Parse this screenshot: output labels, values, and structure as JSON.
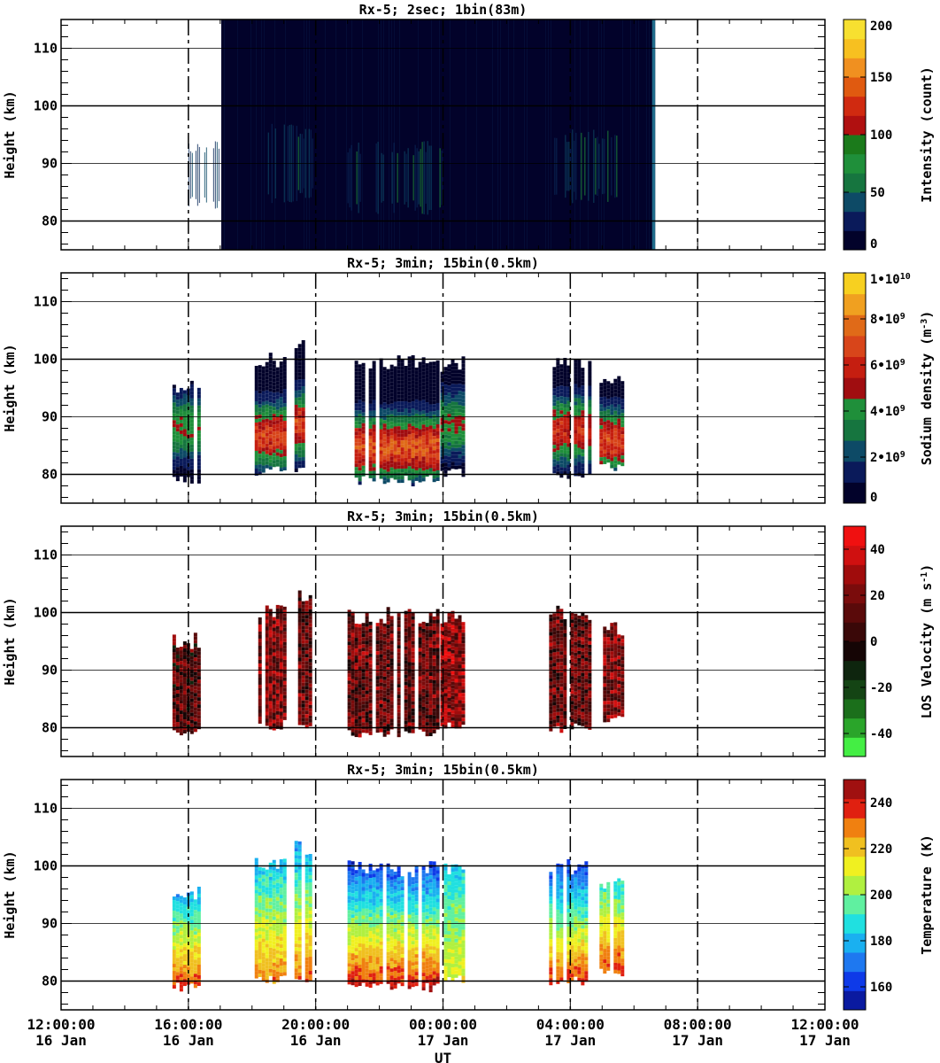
{
  "x_axis": {
    "label": "UT",
    "tick_labels": [
      {
        "time": "12:00:00",
        "date": "16 Jan"
      },
      {
        "time": "16:00:00",
        "date": "16 Jan"
      },
      {
        "time": "20:00:00",
        "date": "16 Jan"
      },
      {
        "time": "00:00:00",
        "date": "17 Jan"
      },
      {
        "time": "04:00:00",
        "date": "17 Jan"
      },
      {
        "time": "08:00:00",
        "date": "17 Jan"
      },
      {
        "time": "12:00:00",
        "date": "17 Jan"
      }
    ]
  },
  "chart_data": [
    {
      "type": "heatmap",
      "title": "Rx-5;  2sec; 1bin(83m)",
      "xlabel": "UT",
      "ylabel": "Height (km)",
      "x_range_hours_ut": [
        "2016-01-16 12:00",
        "2016-01-17 12:00"
      ],
      "ylim": [
        75,
        115
      ],
      "y_ticks": [
        80,
        90,
        100,
        110
      ],
      "colorbar": {
        "label": "Intensity (count)",
        "range": [
          0,
          200
        ],
        "ticks": [
          "0",
          "50",
          "100",
          "150",
          "200"
        ],
        "colors": [
          "#02022a",
          "#0a1a5a",
          "#0d4a66",
          "#16753f",
          "#1f8f3a",
          "#1b7a1b",
          "#b01010",
          "#d02a10",
          "#e05a10",
          "#f09020",
          "#f7c020",
          "#f7e030"
        ]
      },
      "data_coverage": {
        "start": "2016-01-16 17:02",
        "end": "2016-01-17 06:40"
      },
      "enhanced_layers": [
        {
          "start": "2016-01-16 16:00",
          "end": "2016-01-16 17:00",
          "bottom_km": 82,
          "top_km": 94
        },
        {
          "start": "2016-01-16 18:30",
          "end": "2016-01-16 20:00",
          "bottom_km": 83,
          "top_km": 97
        },
        {
          "start": "2016-01-16 21:00",
          "end": "2016-01-17 00:00",
          "bottom_km": 81,
          "top_km": 94
        },
        {
          "start": "2016-01-17 03:30",
          "end": "2016-01-17 05:30",
          "bottom_km": 83,
          "top_km": 96
        }
      ]
    },
    {
      "type": "heatmap",
      "title": "Rx-5; 3min; 15bin(0.5km)",
      "xlabel": "UT",
      "ylabel": "Height (km)",
      "ylim": [
        75,
        115
      ],
      "y_ticks": [
        80,
        90,
        100,
        110
      ],
      "colorbar": {
        "label": "Sodium density (m^-3)",
        "range": [
          0,
          10000000000
        ],
        "ticks": [
          "0",
          "2•10^9",
          "4•10^9",
          "6•10^9",
          "8•10^9",
          "1•10^10"
        ],
        "colors": [
          "#02022a",
          "#0a1a5a",
          "#0d4a66",
          "#16753f",
          "#1f8f3a",
          "#a00d10",
          "#c51e10",
          "#d8451a",
          "#e06a18",
          "#f0a020",
          "#f7d020"
        ]
      },
      "observation_blocks": [
        {
          "start": "2016-01-16 15:30",
          "end": "2016-01-16 16:18",
          "bottom_km": 78.5,
          "top_km": 96.5,
          "peak_km": 88.5,
          "peak_value": 4500000000.0
        },
        {
          "start": "2016-01-16 18:05",
          "end": "2016-01-16 19:00",
          "bottom_km": 80,
          "top_km": 101.5,
          "peak_km": 87,
          "peak_value": 6500000000.0
        },
        {
          "start": "2016-01-16 19:20",
          "end": "2016-01-16 19:50",
          "bottom_km": 80,
          "top_km": 104.5,
          "peak_km": 89,
          "peak_value": 6500000000.0
        },
        {
          "start": "2016-01-16 21:00",
          "end": "2016-01-16 23:50",
          "bottom_km": 78.5,
          "top_km": 101,
          "peak_km": 85,
          "peak_value": 7000000000.0
        },
        {
          "start": "2016-01-16 23:55",
          "end": "2016-01-17 00:40",
          "bottom_km": 80,
          "top_km": 100.5,
          "peak_km": 89,
          "peak_value": 4500000000.0
        },
        {
          "start": "2016-01-17 03:20",
          "end": "2016-01-17 04:40",
          "bottom_km": 79.5,
          "top_km": 101.5,
          "peak_km": 88,
          "peak_value": 6000000000.0
        },
        {
          "start": "2016-01-17 04:55",
          "end": "2016-01-17 05:40",
          "bottom_km": 81,
          "top_km": 98.5,
          "peak_km": 86,
          "peak_value": 6500000000.0
        }
      ]
    },
    {
      "type": "heatmap",
      "title": "Rx-5; 3min; 15bin(0.5km)",
      "xlabel": "UT",
      "ylabel": "Height (km)",
      "ylim": [
        75,
        115
      ],
      "y_ticks": [
        80,
        90,
        100,
        110
      ],
      "colorbar": {
        "label": "LOS Velocity (m s^-1)",
        "range": [
          -50,
          50
        ],
        "ticks": [
          "-40",
          "-20",
          "0",
          "20",
          "40"
        ],
        "colors": [
          "#44ee44",
          "#2aa52a",
          "#1b6f1b",
          "#144414",
          "#0e250e",
          "#150505",
          "#3a0808",
          "#5a0a0a",
          "#7a0c0c",
          "#a00c0c",
          "#d01010",
          "#f01010"
        ]
      },
      "observation_blocks": [
        {
          "start": "2016-01-16 15:30",
          "end": "2016-01-16 16:18",
          "bottom_km": 78.5,
          "top_km": 96.5,
          "mean_velocity": 10
        },
        {
          "start": "2016-01-16 18:05",
          "end": "2016-01-16 19:00",
          "bottom_km": 80,
          "top_km": 101.5,
          "mean_velocity": 20
        },
        {
          "start": "2016-01-16 19:20",
          "end": "2016-01-16 19:50",
          "bottom_km": 80,
          "top_km": 104.5,
          "mean_velocity": 15
        },
        {
          "start": "2016-01-16 21:00",
          "end": "2016-01-16 23:50",
          "bottom_km": 78.5,
          "top_km": 101,
          "mean_velocity": 15
        },
        {
          "start": "2016-01-16 23:55",
          "end": "2016-01-17 00:40",
          "bottom_km": 80,
          "top_km": 100.5,
          "mean_velocity": 25
        },
        {
          "start": "2016-01-17 03:20",
          "end": "2016-01-17 04:40",
          "bottom_km": 79.5,
          "top_km": 101.5,
          "mean_velocity": 15
        },
        {
          "start": "2016-01-17 04:55",
          "end": "2016-01-17 05:40",
          "bottom_km": 81,
          "top_km": 98.5,
          "mean_velocity": 20
        }
      ]
    },
    {
      "type": "heatmap",
      "title": "Rx-5; 3min; 15bin(0.5km)",
      "xlabel": "UT",
      "ylabel": "Height (km)",
      "ylim": [
        75,
        115
      ],
      "y_ticks": [
        80,
        90,
        100,
        110
      ],
      "colorbar": {
        "label": "Temperature (K)",
        "range": [
          150,
          250
        ],
        "ticks": [
          "160",
          "180",
          "200",
          "220",
          "240"
        ],
        "colors": [
          "#0a1aa0",
          "#0e3ae8",
          "#1e78f0",
          "#1ab0f0",
          "#20e0e0",
          "#60f0a0",
          "#b0f040",
          "#f0f020",
          "#f0c020",
          "#f08010",
          "#e02010",
          "#a01010"
        ]
      },
      "observation_blocks": [
        {
          "start": "2016-01-16 15:30",
          "end": "2016-01-16 16:18",
          "bottom_km": 78.5,
          "top_km": 96.5,
          "temp_bottom_K": 240,
          "temp_top_K": 175
        },
        {
          "start": "2016-01-16 18:05",
          "end": "2016-01-16 19:00",
          "bottom_km": 80,
          "top_km": 101.5,
          "temp_bottom_K": 230,
          "temp_top_K": 180
        },
        {
          "start": "2016-01-16 19:20",
          "end": "2016-01-16 19:50",
          "bottom_km": 80,
          "top_km": 104.5,
          "temp_bottom_K": 235,
          "temp_top_K": 175
        },
        {
          "start": "2016-01-16 21:00",
          "end": "2016-01-16 23:50",
          "bottom_km": 78.5,
          "top_km": 101,
          "temp_bottom_K": 245,
          "temp_top_K": 160
        },
        {
          "start": "2016-01-16 23:55",
          "end": "2016-01-17 00:40",
          "bottom_km": 80,
          "top_km": 100.5,
          "temp_bottom_K": 215,
          "temp_top_K": 185
        },
        {
          "start": "2016-01-17 03:20",
          "end": "2016-01-17 04:40",
          "bottom_km": 79.5,
          "top_km": 101.5,
          "temp_bottom_K": 240,
          "temp_top_K": 160
        },
        {
          "start": "2016-01-17 04:55",
          "end": "2016-01-17 05:40",
          "bottom_km": 81,
          "top_km": 98.5,
          "temp_bottom_K": 240,
          "temp_top_K": 185
        }
      ]
    }
  ]
}
